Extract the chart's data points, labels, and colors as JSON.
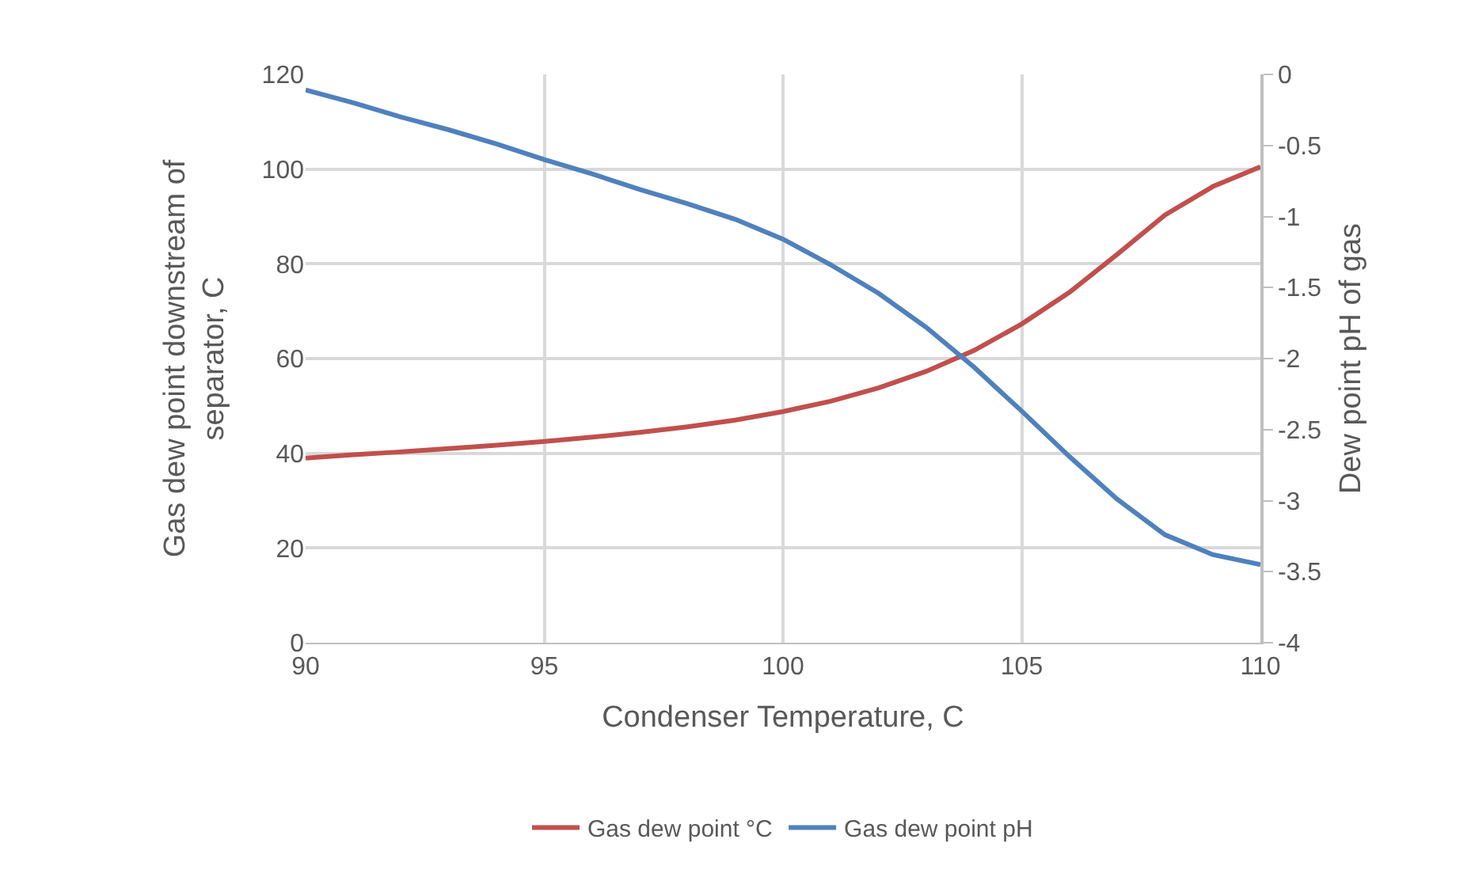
{
  "chart_data": {
    "type": "line",
    "xlabel": "Condenser Temperature, C",
    "ylabel": "Gas dew point downstream of separator, C",
    "y2label": "Dew point pH of gas",
    "x": [
      90,
      91,
      92,
      93,
      94,
      95,
      96,
      97,
      98,
      99,
      100,
      101,
      102,
      103,
      104,
      105,
      106,
      107,
      108,
      109,
      110
    ],
    "series": [
      {
        "name": "Gas dew point °C",
        "color": "#c0504d",
        "values": [
          39,
          39.7,
          40.3,
          41,
          41.7,
          42.5,
          43.4,
          44.4,
          45.6,
          47,
          48.8,
          51,
          53.8,
          57.3,
          61.7,
          67.3,
          74,
          82,
          90.3,
          96.3,
          100.5
        ]
      },
      {
        "name": "Gas dew point pH",
        "color": "#4f81bd",
        "axis": "y2",
        "values": [
          -0.11,
          -0.2,
          -0.3,
          -0.39,
          -0.49,
          -0.6,
          -0.7,
          -0.81,
          -0.91,
          -1.02,
          -1.16,
          -1.34,
          -1.54,
          -1.78,
          -2.06,
          -2.37,
          -2.69,
          -2.99,
          -3.24,
          -3.38,
          -3.45
        ]
      }
    ],
    "xlim": [
      90,
      110
    ],
    "xticks": [
      90,
      95,
      100,
      105,
      110
    ],
    "ylim": [
      0,
      120
    ],
    "yticks": [
      0,
      20,
      40,
      60,
      80,
      100,
      120
    ],
    "y2lim": [
      -4,
      0
    ],
    "y2ticks": [
      -4,
      -3.5,
      -3,
      -2.5,
      -2,
      -1.5,
      -1,
      -0.5,
      0
    ],
    "grid": true,
    "legend": "bottom",
    "marker": "none",
    "line_style": "solid"
  }
}
